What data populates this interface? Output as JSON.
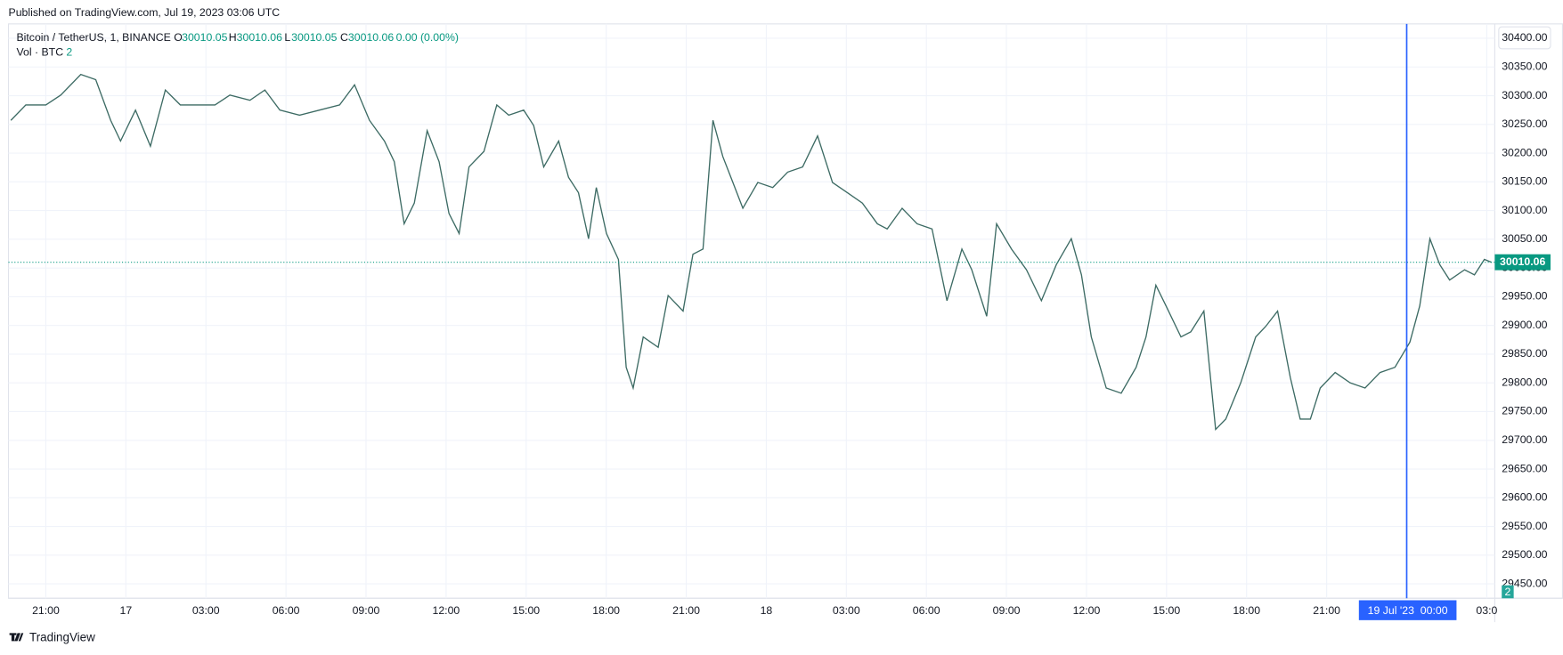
{
  "header": {
    "published": "Published on TradingView.com, Jul 19, 2023 03:06 UTC"
  },
  "legend": {
    "symbol": "Bitcoin / TetherUS, 1, BINANCE",
    "o_label": "O",
    "open": 30010.05,
    "h_label": "H",
    "high": 30010.06,
    "l_label": "L",
    "low": 30010.05,
    "c_label": "C",
    "close": 30010.06,
    "change": "0.00 (0.00%)",
    "volume_label": "Vol · BTC",
    "volume": 2
  },
  "footer": {
    "brand": "TradingView"
  },
  "chart_data": {
    "type": "line",
    "color": "#3d6b64",
    "x": [
      -1.31,
      -0.75,
      0,
      0.56,
      1.31,
      1.87,
      2.43,
      2.8,
      3.36,
      3.92,
      4.48,
      5.04,
      5.78,
      6.34,
      6.9,
      7.65,
      8.21,
      8.77,
      9.51,
      10.26,
      11.01,
      11.57,
      12.13,
      12.69,
      13.06,
      13.43,
      13.81,
      14.29,
      14.74,
      15.11,
      15.49,
      15.86,
      16.42,
      16.9,
      17.35,
      17.91,
      18.28,
      18.66,
      19.22,
      19.59,
      19.96,
      20.34,
      20.63,
      21.01,
      21.46,
      21.75,
      22.01,
      22.39,
      22.95,
      23.32,
      23.88,
      24.25,
      24.63,
      25,
      25.37,
      25.75,
      26.12,
      26.68,
      27.24,
      27.8,
      28.36,
      28.92,
      29.48,
      30.04,
      30.6,
      31.16,
      31.53,
      32.09,
      32.65,
      33.21,
      33.77,
      34.33,
      34.7,
      35.26,
      35.63,
      36.19,
      36.75,
      37.31,
      37.87,
      38.43,
      38.81,
      39.18,
      39.74,
      40.3,
      40.86,
      41.23,
      41.6,
      41.98,
      42.54,
      42.91,
      43.4,
      43.84,
      44.22,
      44.78,
      45.34,
      45.71,
      46.16,
      46.64,
      47.01,
      47.39,
      47.76,
      48.32,
      48.88,
      49.44,
      50,
      50.56,
      51.12,
      51.49,
      51.87,
      52.24,
      52.61,
      53.17,
      53.54,
      53.91,
      54.18
    ],
    "series": [
      {
        "name": "Bitcoin / TetherUS",
        "values": [
          30257,
          30284,
          30284,
          30301,
          30337,
          30328,
          30257,
          30221,
          30275,
          30212,
          30310,
          30284,
          30284,
          30284,
          30301,
          30292,
          30310,
          30275,
          30266,
          30275,
          30284,
          30319,
          30257,
          30221,
          30185,
          30077,
          30113,
          30239,
          30185,
          30095,
          30060,
          30176,
          30203,
          30284,
          30266,
          30275,
          30248,
          30176,
          30221,
          30158,
          30131,
          30051,
          30140,
          30060,
          30015,
          29827,
          29791,
          29880,
          29862,
          29952,
          29925,
          30024,
          30033,
          30257,
          30194,
          30149,
          30104,
          30149,
          30140,
          30167,
          30176,
          30230,
          30149,
          30131,
          30113,
          30077,
          30068,
          30104,
          30077,
          30068,
          29943,
          30033,
          29997,
          29916,
          30077,
          30033,
          29997,
          29943,
          30006,
          30051,
          29988,
          29880,
          29791,
          29782,
          29827,
          29880,
          29970,
          29934,
          29880,
          29889,
          29925,
          29719,
          29737,
          29800,
          29880,
          29898,
          29925,
          29809,
          29737,
          29737,
          29791,
          29818,
          29800,
          29791,
          29818,
          29827,
          29871,
          29934,
          30051,
          30006,
          29979,
          29997,
          29988,
          30015,
          30010
        ]
      }
    ],
    "xlim": [
      -1.4,
      54.3
    ],
    "ylim": [
      29425,
      30425
    ],
    "xticks": [
      {
        "value": 0,
        "label": "21:00"
      },
      {
        "value": 3,
        "label": "17"
      },
      {
        "value": 6,
        "label": "03:00"
      },
      {
        "value": 9,
        "label": "06:00"
      },
      {
        "value": 12,
        "label": "09:00"
      },
      {
        "value": 15,
        "label": "12:00"
      },
      {
        "value": 18,
        "label": "15:00"
      },
      {
        "value": 21,
        "label": "18:00"
      },
      {
        "value": 24,
        "label": "21:00"
      },
      {
        "value": 27,
        "label": "18"
      },
      {
        "value": 30,
        "label": "03:00"
      },
      {
        "value": 33,
        "label": "06:00"
      },
      {
        "value": 36,
        "label": "09:00"
      },
      {
        "value": 39,
        "label": "12:00"
      },
      {
        "value": 42,
        "label": "15:00"
      },
      {
        "value": 45,
        "label": "18:00"
      },
      {
        "value": 48,
        "label": "21:00"
      },
      {
        "value": 54,
        "label": "03:0"
      }
    ],
    "yticks": [
      {
        "value": 29450,
        "label": "29450.00"
      },
      {
        "value": 29500,
        "label": "29500.00"
      },
      {
        "value": 29550,
        "label": "29550.00"
      },
      {
        "value": 29600,
        "label": "29600.00"
      },
      {
        "value": 29650,
        "label": "29650.00"
      },
      {
        "value": 29700,
        "label": "29700.00"
      },
      {
        "value": 29750,
        "label": "29750.00"
      },
      {
        "value": 29800,
        "label": "29800.00"
      },
      {
        "value": 29850,
        "label": "29850.00"
      },
      {
        "value": 29900,
        "label": "29900.00"
      },
      {
        "value": 29950,
        "label": "29950.00"
      },
      {
        "value": 30000,
        "label": "30000.00"
      },
      {
        "value": 30050,
        "label": "30050.00"
      },
      {
        "value": 30100,
        "label": "30100.00"
      },
      {
        "value": 30150,
        "label": "30150.00"
      },
      {
        "value": 30200,
        "label": "30200.00"
      },
      {
        "value": 30250,
        "label": "30250.00"
      },
      {
        "value": 30300,
        "label": "30300.00"
      },
      {
        "value": 30350,
        "label": "30350.00"
      },
      {
        "value": 30400,
        "label": "30400.00"
      }
    ],
    "grid": true,
    "last_price": 30010.06,
    "last_price_color": "#089981",
    "crosshair": {
      "x": 51,
      "label": "19 Jul '23  00:00",
      "color": "#2962ff"
    }
  }
}
